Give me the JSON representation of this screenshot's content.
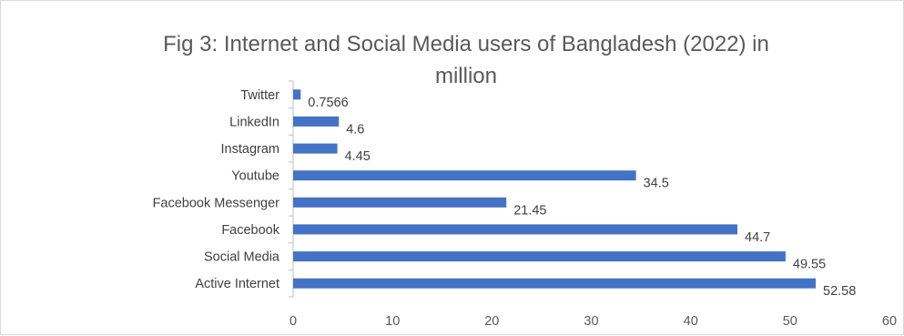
{
  "chart_data": {
    "type": "bar",
    "orientation": "horizontal",
    "title_lines": [
      "Fig 3: Internet and Social Media users of Bangladesh (2022) in",
      "million"
    ],
    "categories": [
      "Active Internet",
      "Social Media",
      "Facebook",
      "Facebook Messenger",
      "Youtube",
      "Instagram",
      "LinkedIn",
      "Twitter"
    ],
    "values": [
      52.58,
      49.55,
      44.7,
      21.45,
      34.5,
      4.45,
      4.6,
      0.7566
    ],
    "value_labels": [
      "52.58",
      "49.55",
      "44.7",
      "21.45",
      "34.5",
      "4.45",
      "4.6",
      "0.7566"
    ],
    "xlim": [
      0,
      60
    ],
    "x_ticks": [
      0,
      10,
      20,
      30,
      40,
      50,
      60
    ],
    "x_tick_labels": [
      "0",
      "10",
      "20",
      "30",
      "40",
      "50",
      "60"
    ],
    "xlabel": "",
    "ylabel": "",
    "grid": false,
    "legend": "none",
    "bar_color": "#4472c4",
    "axis_color": "#bfbfbf"
  }
}
